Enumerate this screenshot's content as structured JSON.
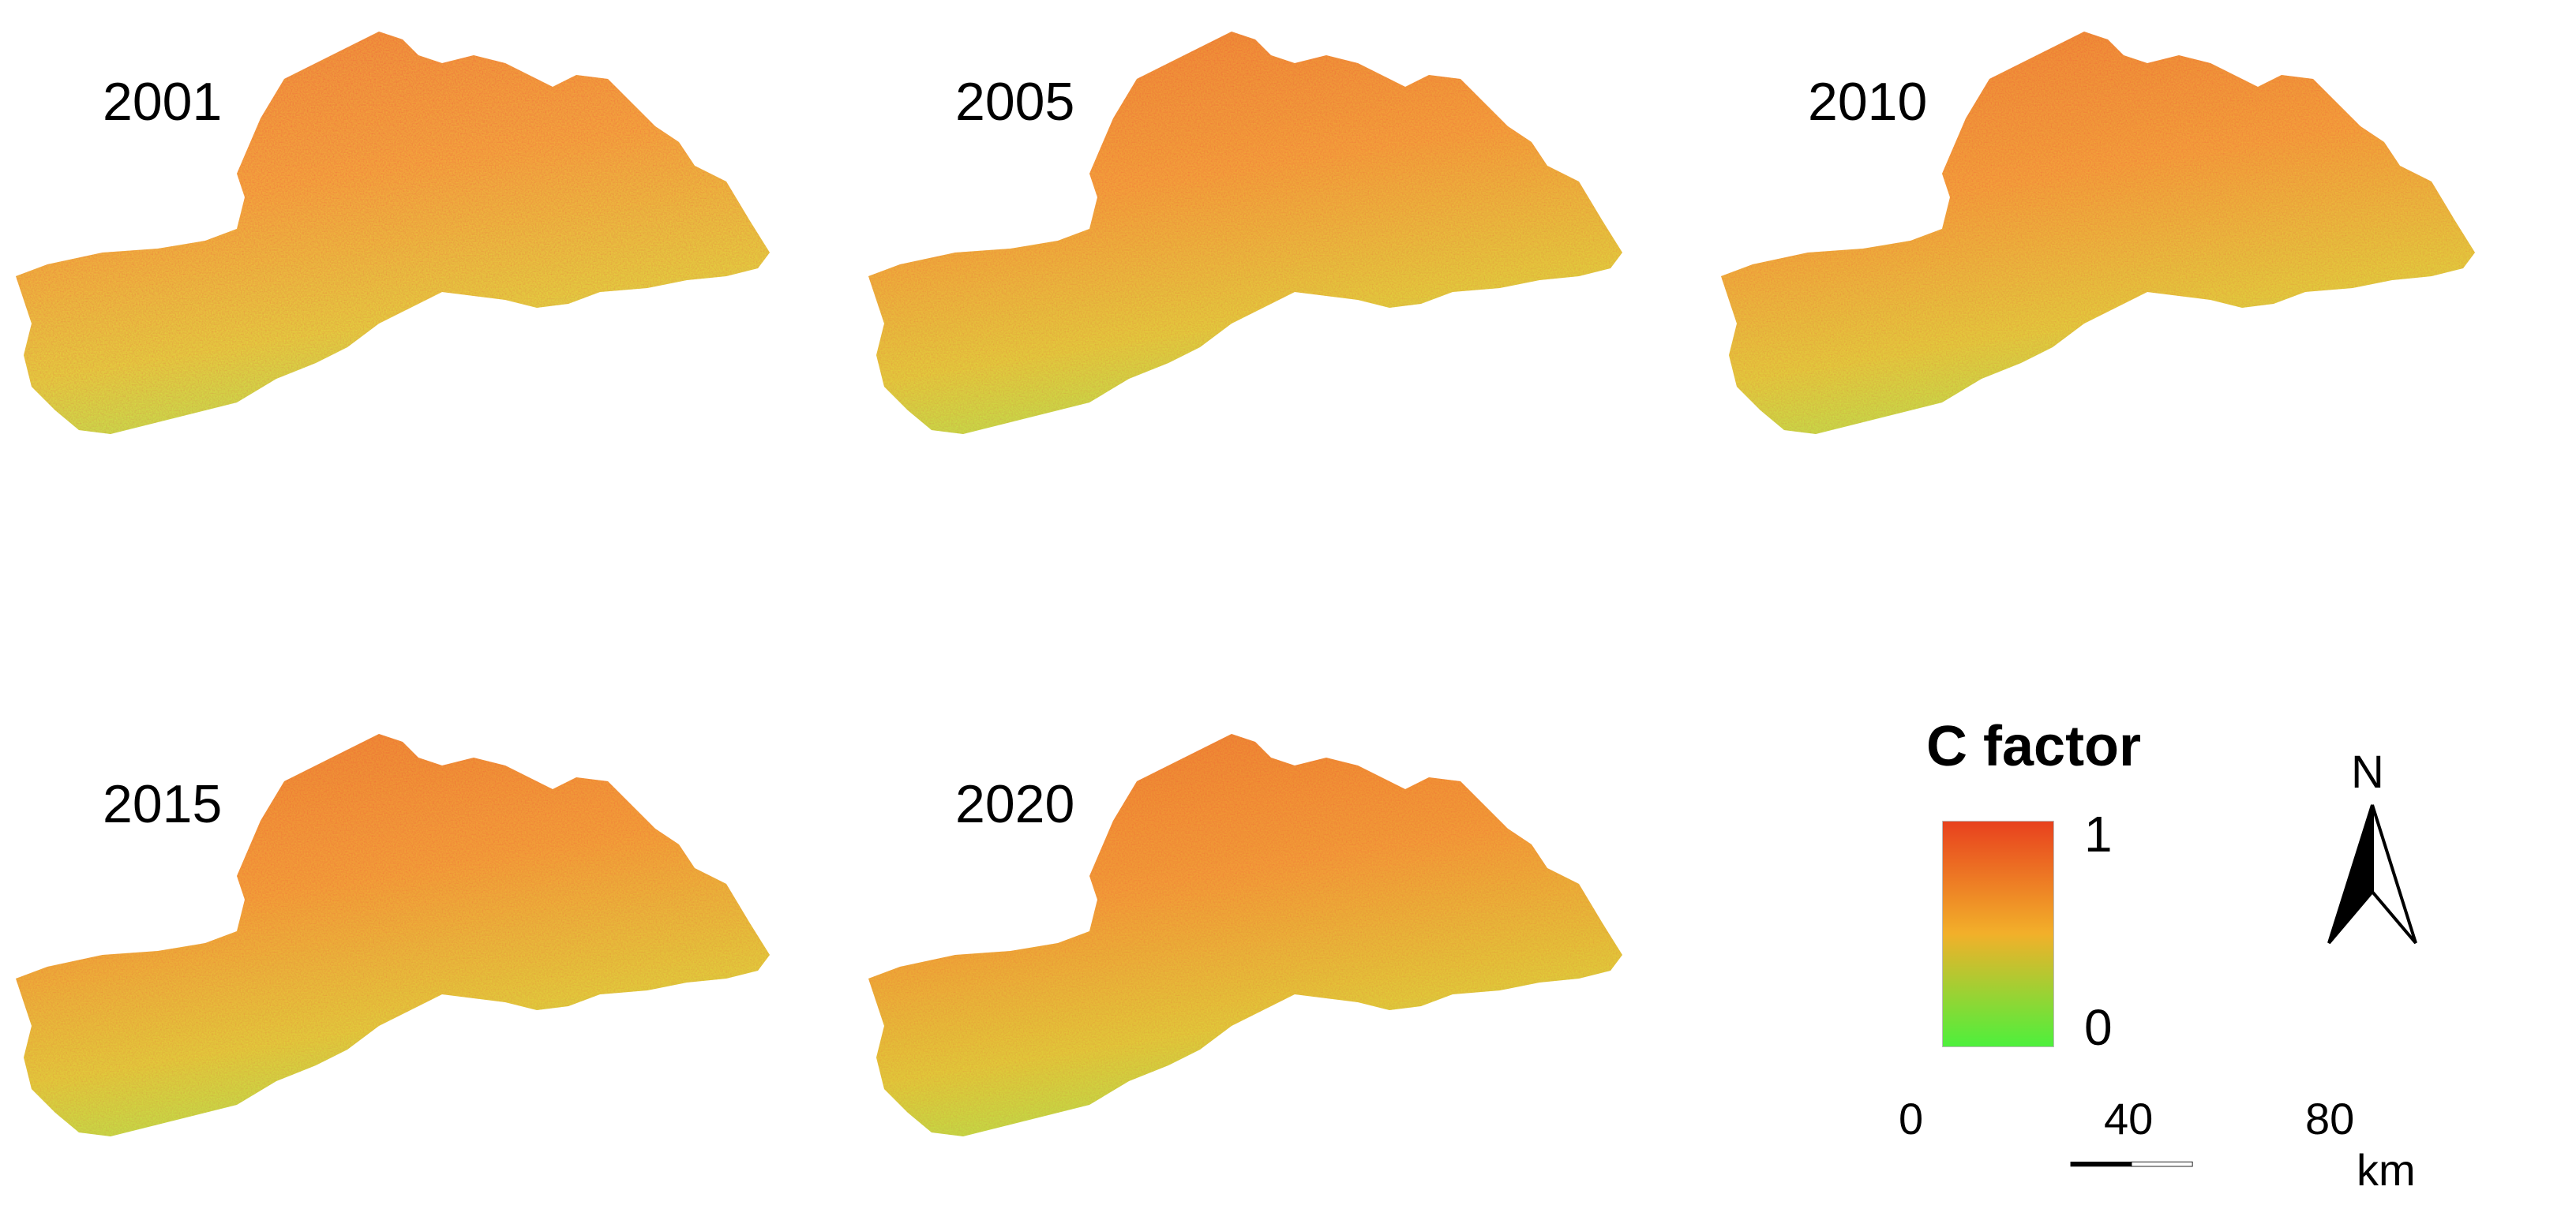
{
  "panels": [
    {
      "year": "2001"
    },
    {
      "year": "2005"
    },
    {
      "year": "2010"
    },
    {
      "year": "2015"
    },
    {
      "year": "2020"
    }
  ],
  "legend": {
    "title": "C factor",
    "max_label": "1",
    "min_label": "0",
    "colors": {
      "high": "#e8411e",
      "mid": "#f2b02a",
      "low": "#4df03c"
    }
  },
  "north_arrow": {
    "label": "N",
    "icon": "north-arrow-icon"
  },
  "scale_bar": {
    "ticks": [
      "0",
      "40",
      "80"
    ],
    "unit": "km"
  }
}
